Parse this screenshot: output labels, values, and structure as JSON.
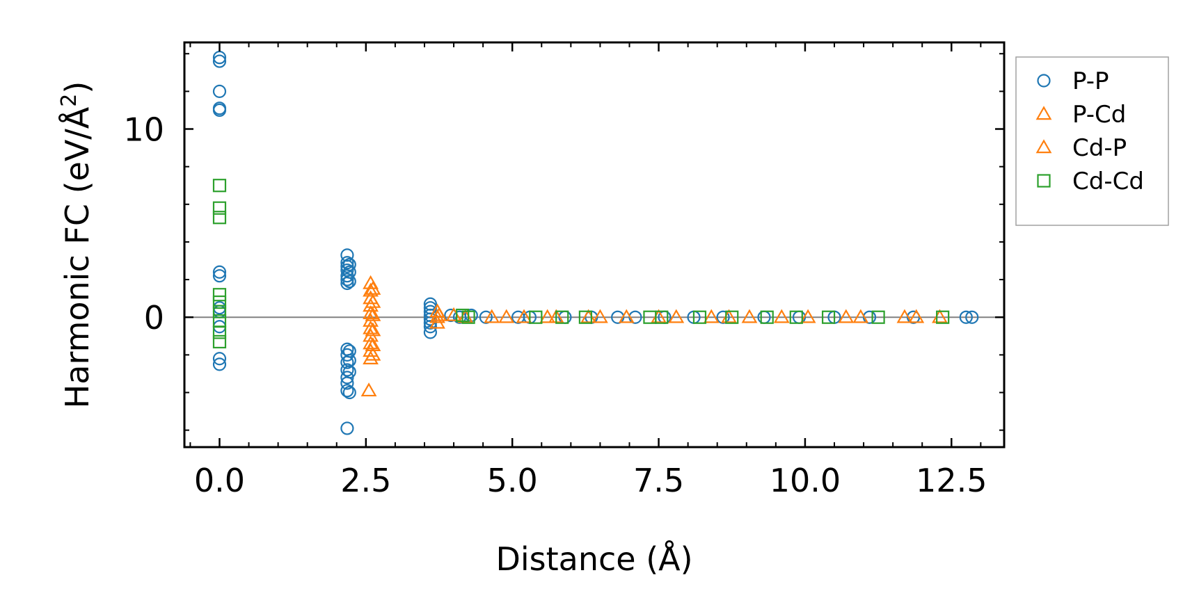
{
  "chart_data": {
    "type": "scatter",
    "title": "",
    "xlabel": "Distance (Å)",
    "ylabel_main": "Harmonic FC (eV/Å",
    "ylabel_sup": "2",
    "ylabel_tail": ")",
    "xlim": [
      -0.6,
      13.4
    ],
    "ylim": [
      -6.9,
      14.6
    ],
    "xticks": [
      0.0,
      2.5,
      5.0,
      7.5,
      10.0,
      12.5
    ],
    "xtick_labels": [
      "0.0",
      "2.5",
      "5.0",
      "7.5",
      "10.0",
      "12.5"
    ],
    "yticks": [
      0,
      10
    ],
    "ytick_labels": [
      "0",
      "10"
    ],
    "x_minor_step": 0.5,
    "y_minor_step": 2,
    "zero_line": true,
    "legend_position": "outside-right-top",
    "series": [
      {
        "name": "P-P",
        "marker": "circle",
        "color": "#1f77b4",
        "points": [
          [
            0,
            13.8
          ],
          [
            0,
            13.6
          ],
          [
            0,
            12.0
          ],
          [
            0,
            11.1
          ],
          [
            0,
            11.0
          ],
          [
            0,
            2.4
          ],
          [
            0,
            2.2
          ],
          [
            0,
            0.5
          ],
          [
            0,
            0.3
          ],
          [
            0,
            -0.5
          ],
          [
            0,
            -2.2
          ],
          [
            0,
            -2.5
          ],
          [
            2.18,
            3.3
          ],
          [
            2.18,
            2.9
          ],
          [
            2.18,
            2.7
          ],
          [
            2.18,
            2.5
          ],
          [
            2.18,
            2.2
          ],
          [
            2.18,
            2.0
          ],
          [
            2.18,
            1.8
          ],
          [
            2.22,
            2.8
          ],
          [
            2.22,
            2.4
          ],
          [
            2.22,
            1.9
          ],
          [
            2.18,
            -1.7
          ],
          [
            2.18,
            -2.0
          ],
          [
            2.18,
            -2.4
          ],
          [
            2.18,
            -2.8
          ],
          [
            2.18,
            -3.2
          ],
          [
            2.18,
            -3.5
          ],
          [
            2.18,
            -3.9
          ],
          [
            2.18,
            -5.9
          ],
          [
            2.22,
            -1.8
          ],
          [
            2.22,
            -2.3
          ],
          [
            2.22,
            -2.9
          ],
          [
            2.22,
            -4.0
          ],
          [
            3.6,
            0.7
          ],
          [
            3.6,
            0.5
          ],
          [
            3.6,
            0.3
          ],
          [
            3.6,
            0.1
          ],
          [
            3.6,
            -0.1
          ],
          [
            3.6,
            -0.3
          ],
          [
            3.6,
            -0.5
          ],
          [
            3.6,
            -0.8
          ],
          [
            3.95,
            0.1
          ],
          [
            4.1,
            0.0
          ],
          [
            4.3,
            0.1
          ],
          [
            4.55,
            0.0
          ],
          [
            5.1,
            0.0
          ],
          [
            5.3,
            0.0
          ],
          [
            5.9,
            0.0
          ],
          [
            6.35,
            0.0
          ],
          [
            6.8,
            0.0
          ],
          [
            7.1,
            0.0
          ],
          [
            7.6,
            0.0
          ],
          [
            8.1,
            0.0
          ],
          [
            8.6,
            0.0
          ],
          [
            9.3,
            0.0
          ],
          [
            9.9,
            0.0
          ],
          [
            10.5,
            0.0
          ],
          [
            11.1,
            0.0
          ],
          [
            11.85,
            0.0
          ],
          [
            12.75,
            0.0
          ],
          [
            12.85,
            0.0
          ]
        ]
      },
      {
        "name": "P-Cd",
        "marker": "triangle",
        "color": "#ff7f0e",
        "points": [
          [
            2.58,
            1.8
          ],
          [
            2.58,
            1.4
          ],
          [
            2.58,
            1.0
          ],
          [
            2.58,
            0.6
          ],
          [
            2.58,
            0.2
          ],
          [
            2.58,
            -0.2
          ],
          [
            2.58,
            -0.6
          ],
          [
            2.58,
            -1.0
          ],
          [
            2.58,
            -1.4
          ],
          [
            2.58,
            -1.8
          ],
          [
            2.58,
            -2.2
          ],
          [
            2.55,
            -3.9
          ],
          [
            2.62,
            1.5
          ],
          [
            2.62,
            0.8
          ],
          [
            2.62,
            0.1
          ],
          [
            2.62,
            -0.7
          ],
          [
            2.62,
            -1.5
          ],
          [
            2.62,
            -2.0
          ],
          [
            3.72,
            0.3
          ],
          [
            3.72,
            0.0
          ],
          [
            3.72,
            -0.3
          ],
          [
            4.0,
            0.1
          ],
          [
            4.9,
            0.0
          ],
          [
            5.6,
            0.0
          ],
          [
            6.5,
            0.0
          ],
          [
            7.5,
            0.0
          ],
          [
            8.4,
            0.0
          ],
          [
            9.6,
            0.0
          ],
          [
            10.7,
            0.0
          ],
          [
            11.9,
            0.0
          ]
        ]
      },
      {
        "name": "Cd-P",
        "marker": "triangle",
        "color": "#ff7f0e",
        "points": [
          [
            3.75,
            0.1
          ],
          [
            4.2,
            0.0
          ],
          [
            4.65,
            0.0
          ],
          [
            5.2,
            0.0
          ],
          [
            5.75,
            0.0
          ],
          [
            6.3,
            0.0
          ],
          [
            6.95,
            0.0
          ],
          [
            7.8,
            0.0
          ],
          [
            8.7,
            0.0
          ],
          [
            9.05,
            0.0
          ],
          [
            10.05,
            0.0
          ],
          [
            10.95,
            0.0
          ],
          [
            11.7,
            0.0
          ],
          [
            12.3,
            0.0
          ]
        ]
      },
      {
        "name": "Cd-Cd",
        "marker": "square",
        "color": "#2ca02c",
        "points": [
          [
            0,
            7.0
          ],
          [
            0,
            5.8
          ],
          [
            0,
            5.3
          ],
          [
            0,
            1.2
          ],
          [
            0,
            0.8
          ],
          [
            0,
            0.3
          ],
          [
            0,
            -0.2
          ],
          [
            0,
            -0.8
          ],
          [
            0,
            -1.3
          ],
          [
            4.15,
            0.1
          ],
          [
            4.25,
            0.0
          ],
          [
            5.4,
            0.0
          ],
          [
            5.85,
            0.0
          ],
          [
            6.25,
            0.0
          ],
          [
            7.35,
            0.0
          ],
          [
            7.55,
            0.0
          ],
          [
            8.2,
            0.0
          ],
          [
            8.75,
            0.0
          ],
          [
            9.35,
            0.0
          ],
          [
            9.85,
            0.0
          ],
          [
            10.4,
            0.0
          ],
          [
            11.25,
            0.0
          ],
          [
            12.35,
            0.0
          ]
        ]
      }
    ]
  }
}
